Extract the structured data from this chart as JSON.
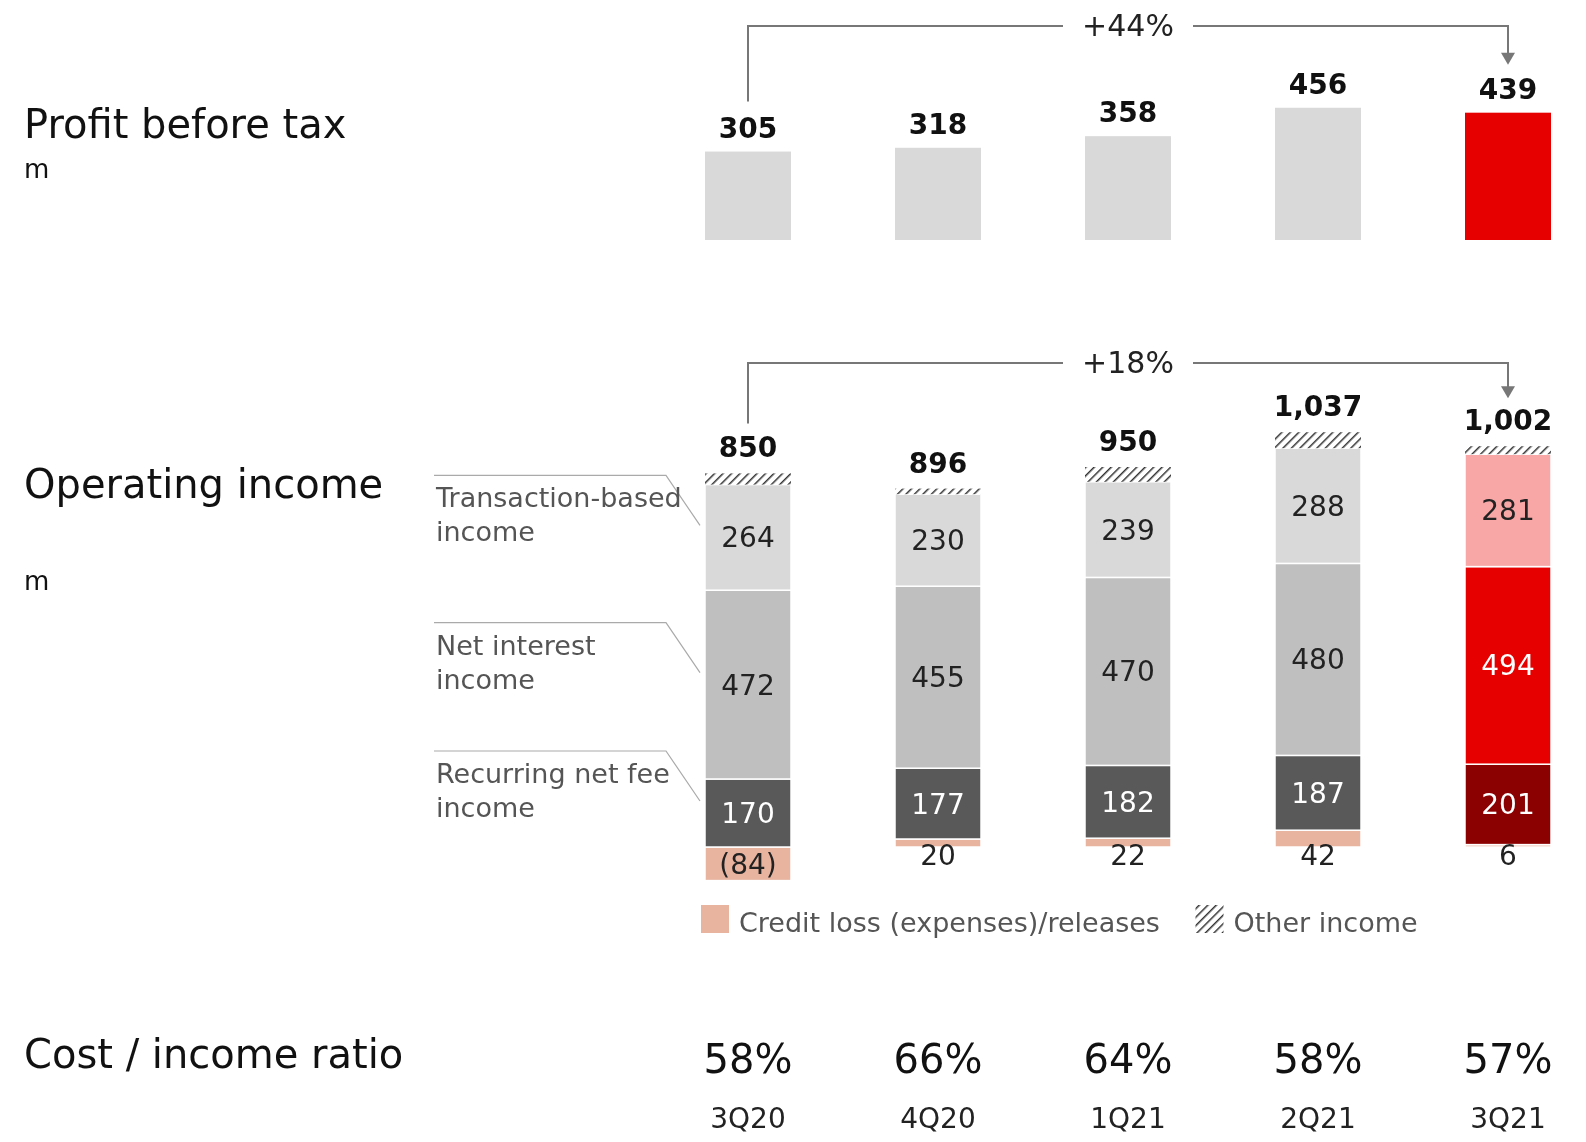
{
  "chart_data": [
    {
      "type": "bar",
      "ylabel": "Profit before tax",
      "categories": [
        null,
        null,
        null,
        null,
        null
      ],
      "values": [
        305,
        318,
        358,
        456,
        439
      ],
      "colors": [
        "#d9d9d9",
        "#d9d9d9",
        "#d9d9d9",
        "#d9d9d9",
        "#e60000"
      ],
      "data_labels": true,
      "annotations": [
        "+44%",
        "m"
      ]
    },
    {
      "type": "bar",
      "ylabel": "Operating income",
      "categories": [
        null,
        null,
        null,
        null,
        null
      ],
      "stacked": true,
      "legend": "bottom",
      "series": [
        {
          "name": "Credit loss (expenses)/releases",
          "color": "#e8b4a0",
          "values": [
            -84,
            20,
            22,
            42,
            6
          ],
          "value_labels": [
            "(84)",
            "20",
            "22",
            "42",
            "6"
          ]
        },
        {
          "name": "Recurring net fee income",
          "color": "#595959",
          "colors": [
            "#595959",
            "#595959",
            "#595959",
            "#595959",
            "#8b0000"
          ],
          "values": [
            170,
            177,
            182,
            187,
            201
          ],
          "value_labels": [
            "170",
            "177",
            "182",
            "187",
            "201"
          ]
        },
        {
          "name": "Net interest income",
          "color": "#bfbfbf",
          "colors": [
            "#bfbfbf",
            "#bfbfbf",
            "#bfbfbf",
            "#bfbfbf",
            "#e60000"
          ],
          "values": [
            472,
            455,
            470,
            480,
            494
          ],
          "value_labels": [
            "472",
            "455",
            "470",
            "480",
            "494"
          ]
        },
        {
          "name": "Transaction-based income",
          "color": "#d9d9d9",
          "colors": [
            "#d9d9d9",
            "#d9d9d9",
            "#d9d9d9",
            "#d9d9d9",
            "#f9a6a6"
          ],
          "values": [
            264,
            230,
            239,
            288,
            281
          ],
          "value_labels": [
            "264",
            "230",
            "239",
            "288",
            "281"
          ]
        },
        {
          "name": "Other income",
          "color": "#333333",
          "values": [
            28,
            14,
            37,
            40,
            20
          ]
        }
      ],
      "totals": [
        "850",
        "896",
        "950",
        "1,037",
        "1,002"
      ],
      "annotations": [
        "+18%",
        "m"
      ]
    },
    {
      "type": "other",
      "title": "Cost / income ratio",
      "categories": [
        "3Q20",
        "4Q20",
        "1Q21",
        "2Q21",
        "3Q21"
      ],
      "values": [
        58,
        66,
        64,
        58,
        57
      ],
      "value_labels": [
        "58%",
        "66%",
        "64%",
        "58%",
        "57%"
      ]
    }
  ]
}
